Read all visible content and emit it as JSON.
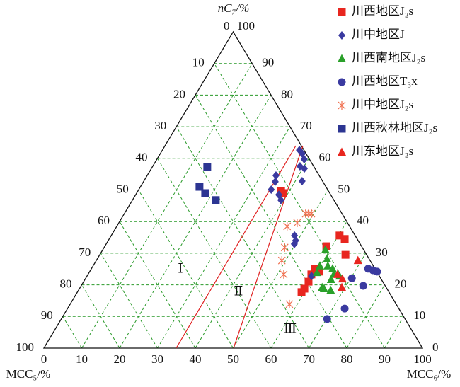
{
  "chart_data": {
    "type": "ternary",
    "axes": {
      "top": {
        "title": "nC₇/%",
        "ticks": [
          0,
          10,
          20,
          30,
          40,
          50,
          60,
          70,
          80,
          90,
          100
        ]
      },
      "left": {
        "title": "MCC₅/%",
        "ticks": [
          0,
          10,
          20,
          30,
          40,
          50,
          60,
          70,
          80,
          90,
          100
        ]
      },
      "bottom": {
        "title": "MCC₆/%",
        "ticks": [
          0,
          10,
          20,
          30,
          40,
          50,
          60,
          70,
          80,
          90,
          100
        ]
      }
    },
    "grid": true,
    "annotations": [
      "Ⅰ",
      "Ⅱ",
      "Ⅲ"
    ],
    "series": [
      {
        "name": "川西地区J₂s",
        "color": "#e8261f",
        "marker": "square",
        "nC7": [
          35.6,
          34.5,
          29.5,
          25.1,
          24.2,
          23.3,
          21.0,
          18.8,
          17.7,
          49.7,
          49.0,
          32.2
        ],
        "MCC6": [
          60.3,
          62.2,
          64.9,
          59.0,
          60.6,
          59.0,
          59.4,
          59.4,
          59.2,
          37.8,
          38.7,
          58.5
        ]
      },
      {
        "name": "川中地区J",
        "color": "#3a3aa0",
        "marker": "diamond",
        "nC7": [
          62.6,
          61.5,
          59.7,
          57.5,
          56.8,
          52.8,
          54.6,
          52.6,
          50.1,
          48.5,
          46.8,
          35.6,
          34.0,
          32.9,
          22.8
        ],
        "MCC6": [
          36.2,
          37.5,
          38.9,
          38.9,
          40.4,
          41.8,
          34.0,
          34.8,
          35.0,
          37.8,
          39.2,
          48.4,
          49.5,
          49.7,
          59.3
        ]
      },
      {
        "name": "川西南地区J₂s",
        "color": "#2aa02a",
        "marker": "triangle",
        "nC7": [
          31.1,
          28.2,
          26.0,
          26.0,
          23.9,
          25.1,
          23.5,
          22.8,
          21.7,
          18.8,
          18.3,
          19.2
        ],
        "MCC6": [
          58.8,
          60.7,
          62.0,
          59.9,
          60.2,
          63.7,
          64.9,
          66.7,
          65.0,
          64.6,
          66.6,
          63.9
        ]
      },
      {
        "name": "川西地区T₃x",
        "color": "#3a3aa0",
        "marker": "circle",
        "nC7": [
          25.1,
          24.6,
          24.2,
          22.1,
          19.7,
          12.5,
          9.2
        ],
        "MCC6": [
          73.1,
          74.6,
          75.9,
          70.3,
          74.5,
          73.2,
          70.2
        ]
      },
      {
        "name": "川中地区J₂s",
        "color": "#f07050",
        "marker": "cross",
        "nC7": [
          42.5,
          42.5,
          42.5,
          39.6,
          38.5,
          31.8,
          27.7,
          23.3,
          13.9
        ],
        "MCC6": [
          48.7,
          47.9,
          49.4,
          47.1,
          45.0,
          47.7,
          49.0,
          51.7,
          57.9
        ]
      },
      {
        "name": "川西秋林地区J₂s",
        "color": "#2c3592",
        "marker": "square",
        "nC7": [
          57.3,
          51.0,
          49.0,
          46.8
        ],
        "MCC6": [
          14.5,
          15.6,
          18.1,
          22.0
        ]
      },
      {
        "name": "川东地区J₂s",
        "color": "#e8261f",
        "marker": "triangle",
        "nC7": [
          27.7,
          23.3,
          21.9,
          19.2
        ],
        "MCC6": [
          69.1,
          65.9,
          67.9,
          69.1
        ]
      }
    ]
  }
}
